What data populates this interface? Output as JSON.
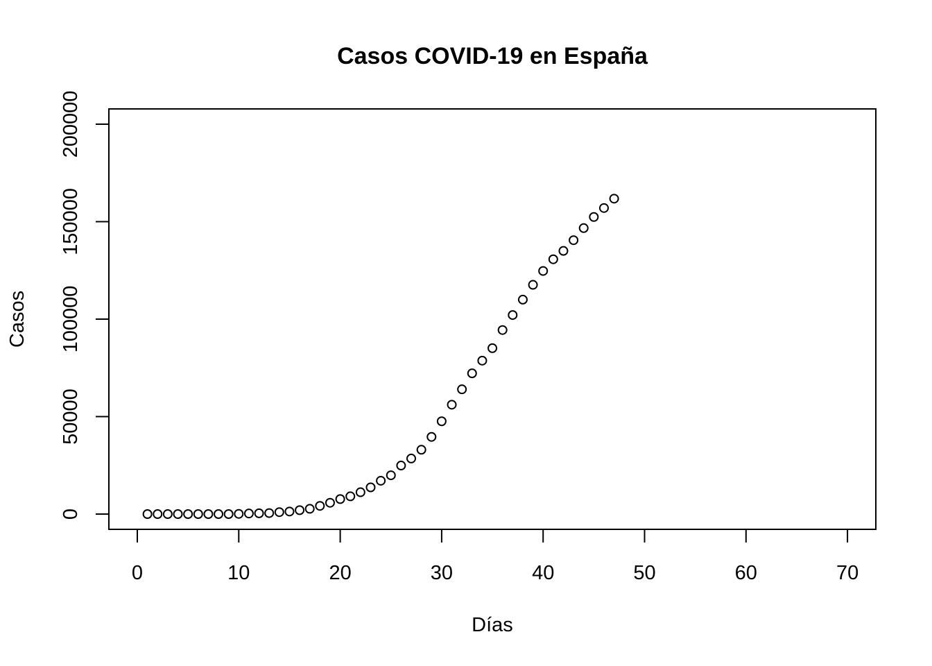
{
  "chart_data": {
    "type": "scatter",
    "title": "Casos COVID-19 en España",
    "xlabel": "Días",
    "ylabel": "Casos",
    "xlim": [
      0,
      70
    ],
    "ylim": [
      0,
      200000
    ],
    "xticks": [
      0,
      10,
      20,
      30,
      40,
      50,
      60,
      70
    ],
    "yticks": [
      0,
      50000,
      100000,
      150000,
      200000
    ],
    "xtick_labels": [
      "0",
      "10",
      "20",
      "30",
      "40",
      "50",
      "60",
      "70"
    ],
    "ytick_labels": [
      "0",
      "50000",
      "100000",
      "150000",
      "200000"
    ],
    "grid": false,
    "marker": "open-circle",
    "color": "#000000",
    "series": [
      {
        "x": [
          1,
          2,
          3,
          4,
          5,
          6,
          7,
          8,
          9,
          10,
          11,
          12,
          13,
          14,
          15,
          16,
          17,
          18,
          19,
          20,
          21,
          22,
          23,
          24,
          25,
          26,
          27,
          28,
          29,
          30,
          31,
          32,
          33,
          34,
          35,
          36,
          37,
          38,
          39,
          40,
          41,
          42,
          43,
          44,
          45,
          46,
          47
        ],
        "y": [
          0,
          0,
          0,
          0,
          0,
          0,
          0,
          0,
          0,
          100,
          300,
          400,
          500,
          1000,
          1300,
          2000,
          2700,
          4200,
          5800,
          7700,
          9100,
          11200,
          13700,
          17100,
          19900,
          24900,
          28500,
          33000,
          39600,
          47600,
          56100,
          64000,
          72200,
          78700,
          85100,
          94400,
          102100,
          110000,
          117600,
          124700,
          130700,
          135000,
          140500,
          146700,
          152400,
          157000,
          161800
        ]
      }
    ]
  }
}
